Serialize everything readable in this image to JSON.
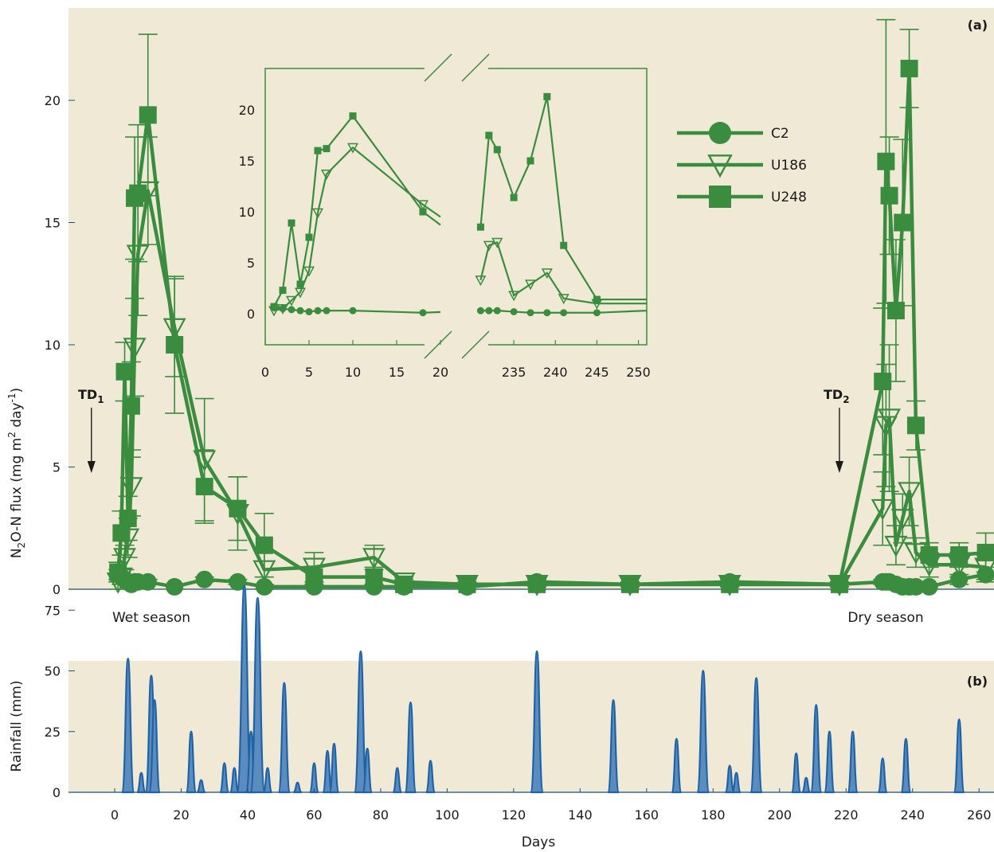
{
  "chart_data": [
    {
      "panel": "(a)",
      "type": "line",
      "ylabel": {
        "pre": "N",
        "sub": "2",
        "mid": "O-N flux (mg m",
        "sup1": "2",
        "mid2": " day",
        "sup2": "-1",
        "post": ")"
      },
      "ylim": [
        0,
        23.5
      ],
      "xlim": [
        -10,
        262
      ],
      "yticks": [
        "0",
        "5",
        "10",
        "15",
        "20"
      ],
      "annotations": {
        "wet": "Wet season",
        "dry": "Dry season",
        "td1": {
          "main": "TD",
          "sub": "1",
          "x": -7
        },
        "td2": {
          "main": "TD",
          "sub": "2",
          "x": 218
        }
      },
      "series": [
        {
          "name": "C2",
          "marker": "circle",
          "x": [
            1,
            2,
            3,
            4,
            5,
            6,
            7,
            10,
            18,
            27,
            37,
            45,
            60,
            78,
            87,
            106,
            127,
            155,
            185,
            218,
            231,
            232,
            233,
            235,
            237,
            239,
            241,
            245,
            254,
            262
          ],
          "y": [
            0.6,
            0.5,
            0.4,
            0.3,
            0.2,
            0.3,
            0.3,
            0.3,
            0.1,
            0.4,
            0.3,
            0.1,
            0.1,
            0.1,
            0.1,
            0.1,
            0.3,
            0.2,
            0.3,
            0.2,
            0.3,
            0.3,
            0.3,
            0.2,
            0.1,
            0.1,
            0.1,
            0.1,
            0.4,
            0.6
          ],
          "err": [
            0.2,
            0.2,
            0.1,
            0.1,
            0.1,
            0.1,
            0.1,
            0.1,
            0.1,
            0.1,
            0.1,
            0.1,
            0.1,
            0.1,
            0.1,
            0.1,
            0.2,
            0.1,
            0.1,
            0.1,
            0.1,
            0.1,
            0.1,
            0.1,
            0.1,
            0.1,
            0.1,
            0.1,
            0.2,
            0.3
          ]
        },
        {
          "name": "U186",
          "marker": "triangle-down",
          "x": [
            1,
            2,
            3,
            4,
            5,
            6,
            7,
            10,
            18,
            27,
            37,
            45,
            60,
            78,
            87,
            106,
            127,
            155,
            185,
            218,
            231,
            232,
            233,
            235,
            237,
            239,
            241,
            245,
            254,
            262
          ],
          "y": [
            0.3,
            0.5,
            1.3,
            2.1,
            4.2,
            9.9,
            13.7,
            16.3,
            10.7,
            5.3,
            3.1,
            0.8,
            0.9,
            1.3,
            0.3,
            0.2,
            0.2,
            0.2,
            0.2,
            0.2,
            3.3,
            6.7,
            7.0,
            1.8,
            2.9,
            4.0,
            1.5,
            1.0,
            1.0,
            0.9
          ],
          "err": [
            0.3,
            0.3,
            0.5,
            0.8,
            1.2,
            2.0,
            2.5,
            2.2,
            2.0,
            2.5,
            1.5,
            0.8,
            0.6,
            0.5,
            0.2,
            0.1,
            0.2,
            0.1,
            0.1,
            0.1,
            1.5,
            2.5,
            3.0,
            0.8,
            1.0,
            1.4,
            0.6,
            0.5,
            0.5,
            0.5
          ]
        },
        {
          "name": "U248",
          "marker": "square",
          "x": [
            1,
            2,
            3,
            4,
            5,
            6,
            7,
            10,
            18,
            27,
            37,
            45,
            60,
            78,
            87,
            106,
            127,
            155,
            185,
            218,
            231,
            232,
            233,
            235,
            237,
            239,
            241,
            245,
            254,
            262
          ],
          "y": [
            0.7,
            2.3,
            8.9,
            2.9,
            7.5,
            16.0,
            16.2,
            19.4,
            10.0,
            4.2,
            3.3,
            1.8,
            0.5,
            0.5,
            0.2,
            0.2,
            0.2,
            0.2,
            0.2,
            0.2,
            8.5,
            17.5,
            16.1,
            11.4,
            15.0,
            21.3,
            6.7,
            1.4,
            1.4,
            1.5
          ],
          "err": [
            0.4,
            0.9,
            1.2,
            0.9,
            1.8,
            2.5,
            2.8,
            3.3,
            2.8,
            1.5,
            1.3,
            1.3,
            0.4,
            0.4,
            0.2,
            0.2,
            0.2,
            0.1,
            0.1,
            0.1,
            3.0,
            5.8,
            2.4,
            2.9,
            3.4,
            1.6,
            1.0,
            0.5,
            0.5,
            0.8
          ]
        }
      ]
    },
    {
      "panel": "(b)",
      "type": "area",
      "ylabel": "Rainfall (mm)",
      "xlabel": "Days",
      "xlim": [
        -10,
        262
      ],
      "ylim": [
        0,
        92
      ],
      "yticks": [
        "0",
        "25",
        "50",
        "75"
      ],
      "xticks": [
        "0",
        "20",
        "40",
        "60",
        "80",
        "100",
        "120",
        "140",
        "160",
        "180",
        "200",
        "220",
        "240",
        "260"
      ],
      "series": [
        {
          "name": "",
          "x": [
            4,
            8,
            11,
            12,
            23,
            26,
            33,
            36,
            39,
            41,
            43,
            46,
            51,
            55,
            60,
            64,
            66,
            74,
            76,
            85,
            89,
            95,
            127,
            150,
            169,
            177,
            185,
            187,
            193,
            205,
            208,
            211,
            215,
            222,
            231,
            238,
            254
          ],
          "values": [
            55,
            8,
            48,
            38,
            25,
            5,
            12,
            10,
            85,
            25,
            80,
            10,
            45,
            4,
            12,
            17,
            20,
            58,
            18,
            10,
            37,
            13,
            58,
            38,
            22,
            50,
            11,
            8,
            47,
            16,
            6,
            36,
            25,
            25,
            14,
            22,
            30
          ]
        }
      ]
    }
  ],
  "inset": {
    "xticks": [
      "0",
      "5",
      "10",
      "15",
      "20",
      "235",
      "240",
      "245",
      "250"
    ],
    "yticks": [
      "0",
      "5",
      "10",
      "15",
      "20"
    ],
    "seg1": [
      0,
      20
    ],
    "seg2": [
      230,
      251
    ],
    "ylim": [
      -2,
      23.5
    ]
  },
  "legend": [
    "C2",
    "U186",
    "U248"
  ],
  "colors": {
    "line": "#3a8c3e",
    "bg": "#f0e9d6",
    "rain": "#1f63a6",
    "rain_fill": "#5a8cc0",
    "axis": "#1f4f7a"
  }
}
